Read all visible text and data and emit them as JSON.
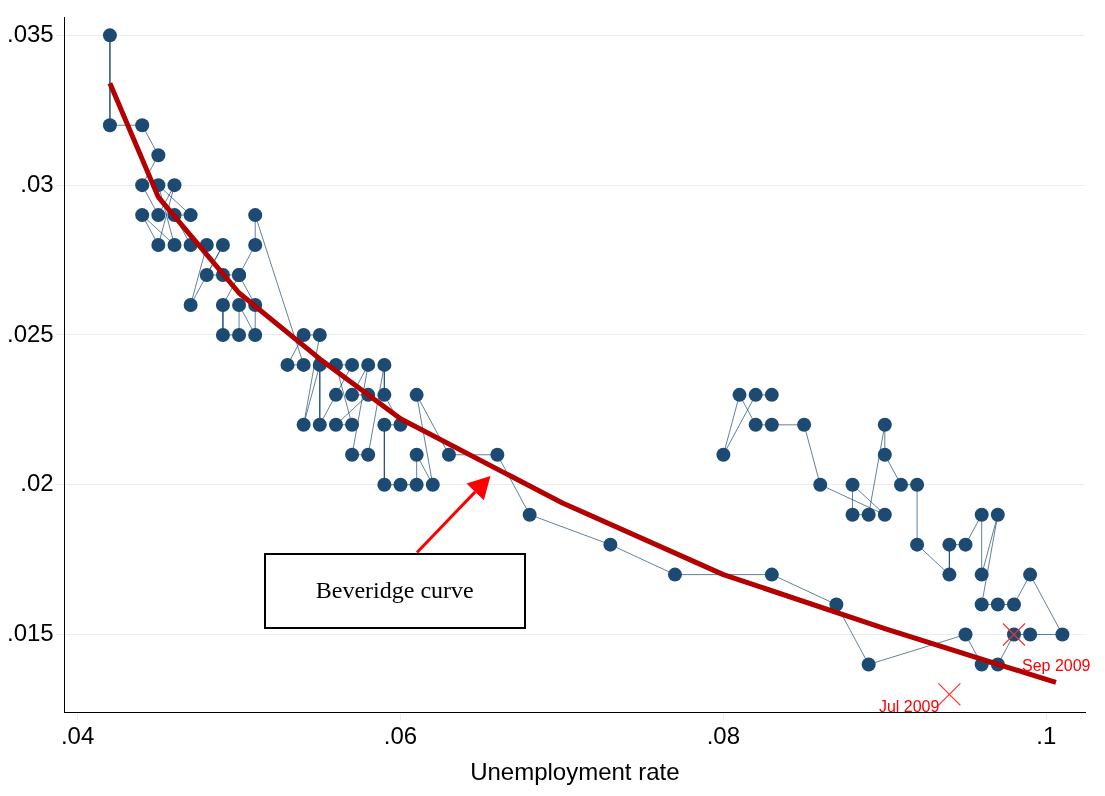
{
  "chart_data": {
    "type": "line",
    "xlabel": "Unemployment rate",
    "xlim": [
      0.0392,
      0.1024
    ],
    "xticks": [
      {
        "value": 0.04,
        "label": ".04"
      },
      {
        "value": 0.06,
        "label": ".06"
      },
      {
        "value": 0.08,
        "label": ".08"
      },
      {
        "value": 0.1,
        "label": ".1"
      }
    ],
    "ylim": [
      0.0124,
      0.0356
    ],
    "yticks": [
      {
        "value": 0.015,
        "label": ".015"
      },
      {
        "value": 0.02,
        "label": ".02"
      },
      {
        "value": 0.025,
        "label": ".025"
      },
      {
        "value": 0.03,
        "label": ".03"
      },
      {
        "value": 0.035,
        "label": ".035"
      }
    ],
    "grid": "y",
    "series": [
      {
        "color": "#1c4a72",
        "marker": "circle",
        "x": [
          0.042,
          0.042,
          0.044,
          0.045,
          0.044,
          0.045,
          0.046,
          0.045,
          0.044,
          0.046,
          0.045,
          0.047,
          0.046,
          0.047,
          0.048,
          0.047,
          0.049,
          0.048,
          0.049,
          0.05,
          0.049,
          0.049,
          0.05,
          0.05,
          0.051,
          0.051,
          0.05,
          0.051,
          0.051,
          0.054,
          0.053,
          0.054,
          0.055,
          0.054,
          0.055,
          0.055,
          0.056,
          0.057,
          0.056,
          0.057,
          0.056,
          0.058,
          0.057,
          0.058,
          0.057,
          0.058,
          0.059,
          0.059,
          0.06,
          0.059,
          0.059,
          0.06,
          0.061,
          0.061,
          0.062,
          0.061,
          0.063,
          0.066,
          0.068,
          0.073,
          0.077,
          0.083,
          0.087,
          0.089,
          0.095,
          0.096,
          0.097,
          0.098,
          0.099,
          0.101,
          0.099,
          0.098,
          0.097,
          0.096,
          0.097,
          0.096,
          0.096,
          0.095,
          0.094,
          0.094,
          0.092,
          0.092,
          0.091,
          0.09,
          0.09,
          0.089,
          0.088,
          0.088,
          0.09,
          0.086,
          0.085,
          0.083,
          0.082,
          0.081,
          0.08,
          0.082,
          0.083
        ],
        "values": [
          0.035,
          0.032,
          0.032,
          0.031,
          0.03,
          0.029,
          0.03,
          0.028,
          0.029,
          0.028,
          0.03,
          0.029,
          0.029,
          0.028,
          0.028,
          0.026,
          0.028,
          0.027,
          0.027,
          0.027,
          0.026,
          0.025,
          0.025,
          0.026,
          0.025,
          0.026,
          0.027,
          0.028,
          0.029,
          0.024,
          0.024,
          0.025,
          0.025,
          0.022,
          0.024,
          0.022,
          0.023,
          0.024,
          0.024,
          0.022,
          0.022,
          0.023,
          0.023,
          0.024,
          0.021,
          0.021,
          0.024,
          0.023,
          0.022,
          0.022,
          0.02,
          0.02,
          0.02,
          0.021,
          0.02,
          0.023,
          0.021,
          0.021,
          0.019,
          0.018,
          0.017,
          0.017,
          0.016,
          0.014,
          0.015,
          0.014,
          0.014,
          0.015,
          0.015,
          0.015,
          0.017,
          0.016,
          0.016,
          0.016,
          0.019,
          0.017,
          0.019,
          0.018,
          0.018,
          0.017,
          0.018,
          0.02,
          0.02,
          0.021,
          0.022,
          0.019,
          0.019,
          0.02,
          0.019,
          0.02,
          0.022,
          0.022,
          0.022,
          0.023,
          0.021,
          0.023,
          0.023
        ]
      },
      {
        "type": "line",
        "color": "#b30000",
        "marker": "none",
        "x": [
          0.042,
          0.045,
          0.05,
          0.055,
          0.06,
          0.07,
          0.08,
          0.09,
          0.1,
          0.1006
        ],
        "values": [
          0.0334,
          0.0296,
          0.0264,
          0.0242,
          0.0222,
          0.0194,
          0.017,
          0.0152,
          0.0135,
          0.0134
        ]
      }
    ],
    "annotations": [
      "Beveridge curve",
      {
        "text": "Jul 2009",
        "x": 0.094,
        "y": 0.013
      },
      {
        "text": "Sep 2009",
        "x": 0.098,
        "y": 0.015
      }
    ]
  }
}
